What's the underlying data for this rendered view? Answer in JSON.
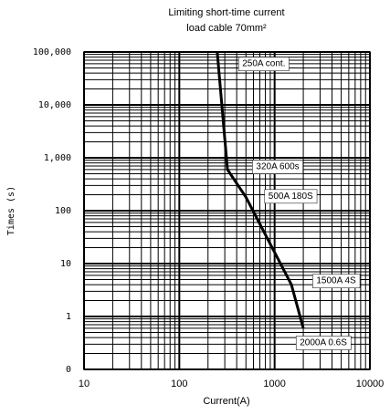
{
  "chart_data": {
    "type": "line",
    "title": [
      "Limiting short-time current",
      "load cable 70mm²"
    ],
    "x_label": "Current(A)",
    "y_label": "Times (s)",
    "x": [
      250,
      320,
      500,
      1500,
      2000
    ],
    "values": [
      100000,
      600,
      180,
      4,
      0.6
    ],
    "color": "#000000",
    "annotations": [
      "250A cont.",
      "320A 600s",
      "500A 180S",
      "1500A 4S",
      "2000A 0.6S"
    ],
    "xscale": "log",
    "yscale": "log",
    "xlim": [
      10,
      10000
    ],
    "xticks": [
      10,
      100,
      1000,
      10000
    ],
    "ylim": [
      0.1,
      100000
    ],
    "yticks": [
      {
        "value": 100000,
        "label": "100,000"
      },
      {
        "value": 10000,
        "label": "10,000"
      },
      {
        "value": 1000,
        "label": "1,000"
      },
      100,
      10,
      1,
      {
        "value": 0.1,
        "label": "0"
      }
    ],
    "grid": true,
    "minor_grid": true
  }
}
